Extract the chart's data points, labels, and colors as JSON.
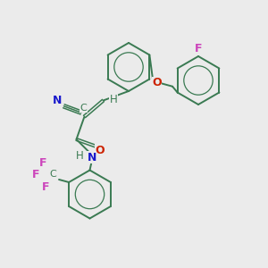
{
  "background_color": "#ebebeb",
  "bond_color": "#3a7a52",
  "text_colors": {
    "N": "#1a1acc",
    "O": "#cc2200",
    "F": "#cc44bb",
    "H": "#3a7a52",
    "triple_N": "#1a1acc"
  },
  "figsize": [
    3.0,
    3.0
  ],
  "dpi": 100,
  "xlim": [
    0,
    10
  ],
  "ylim": [
    0,
    10
  ]
}
